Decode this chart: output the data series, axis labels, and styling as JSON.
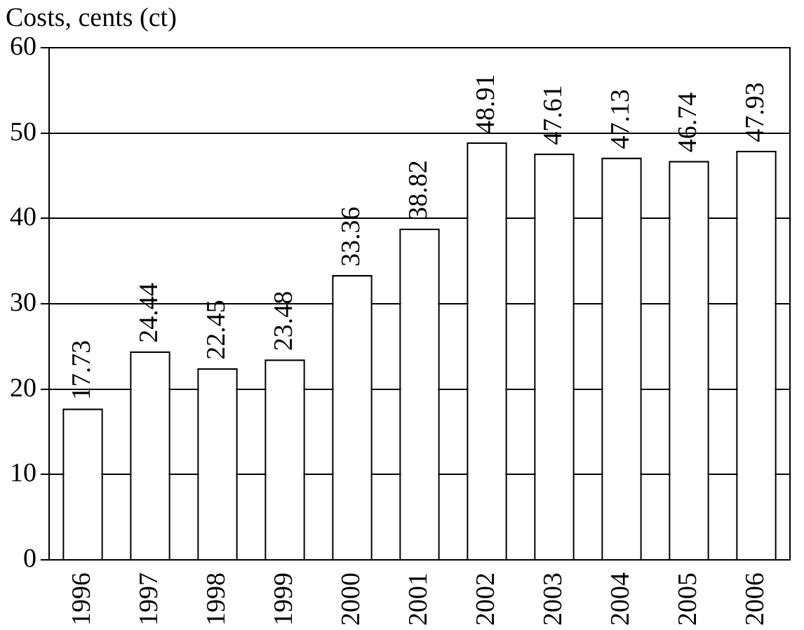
{
  "chart_data": {
    "type": "bar",
    "ylabel": "Costs, cents (ct)",
    "categories": [
      "1996",
      "1997",
      "1998",
      "1999",
      "2000",
      "2001",
      "2002",
      "2003",
      "2004",
      "2005",
      "2006"
    ],
    "values": [
      17.73,
      24.44,
      22.45,
      23.48,
      33.36,
      38.82,
      48.91,
      47.61,
      47.13,
      46.74,
      47.93
    ],
    "color": "#ffffff",
    "ylim": [
      0,
      60
    ],
    "yticks": [
      0,
      10,
      20,
      30,
      40,
      50,
      60
    ],
    "grid": "y",
    "data_labels": true
  }
}
